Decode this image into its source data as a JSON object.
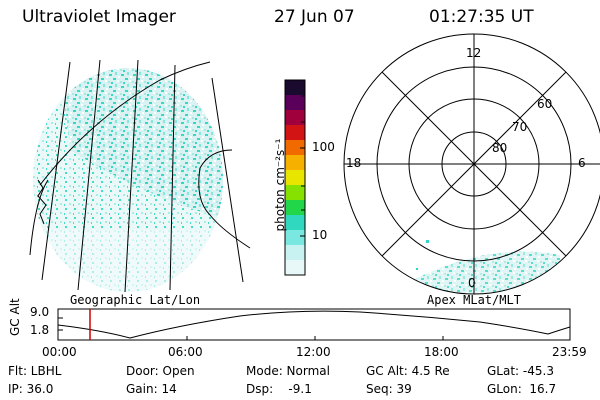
{
  "header": {
    "instrument": "Ultraviolet Imager",
    "date": "27 Jun 07",
    "time": "01:27:35 UT"
  },
  "colorbar": {
    "unit_label": "photon cm⁻²s⁻¹",
    "ticks": [
      "100",
      "10"
    ],
    "colors": [
      "#1a0a2e",
      "#5a005a",
      "#a0003c",
      "#d21414",
      "#f06a00",
      "#f6b000",
      "#e8e600",
      "#86e000",
      "#22d64a",
      "#30d8c0",
      "#7ae8e0",
      "#c8f2f2",
      "#e8f8f8"
    ]
  },
  "polar_plot": {
    "labels_mlt": [
      "12",
      "18",
      "6",
      "0"
    ],
    "labels_mlat": [
      "60",
      "70",
      "80"
    ]
  },
  "projection_labels": {
    "left": "Geographic Lat/Lon",
    "right": "Apex MLat/MLT"
  },
  "altitude_plot": {
    "ylabel": "GC Alt",
    "yticks": [
      "9.0",
      "1.8"
    ],
    "xticks": [
      "00:00",
      "06:00",
      "12:00",
      "18:00",
      "23:59"
    ],
    "current_marker_color": "#cc0000"
  },
  "footer": {
    "filter": "Flt: LBHL",
    "door": "Door: Open",
    "mode": "Mode: Normal",
    "gc_alt": "GC Alt: 4.5 Re",
    "glat": "GLat: -45.3",
    "ip": "IP: 36.0",
    "gain": "Gain: 14",
    "dsp": "Dsp:    -9.1",
    "seq": "Seq: 39",
    "glon": "GLon:  16.7"
  }
}
